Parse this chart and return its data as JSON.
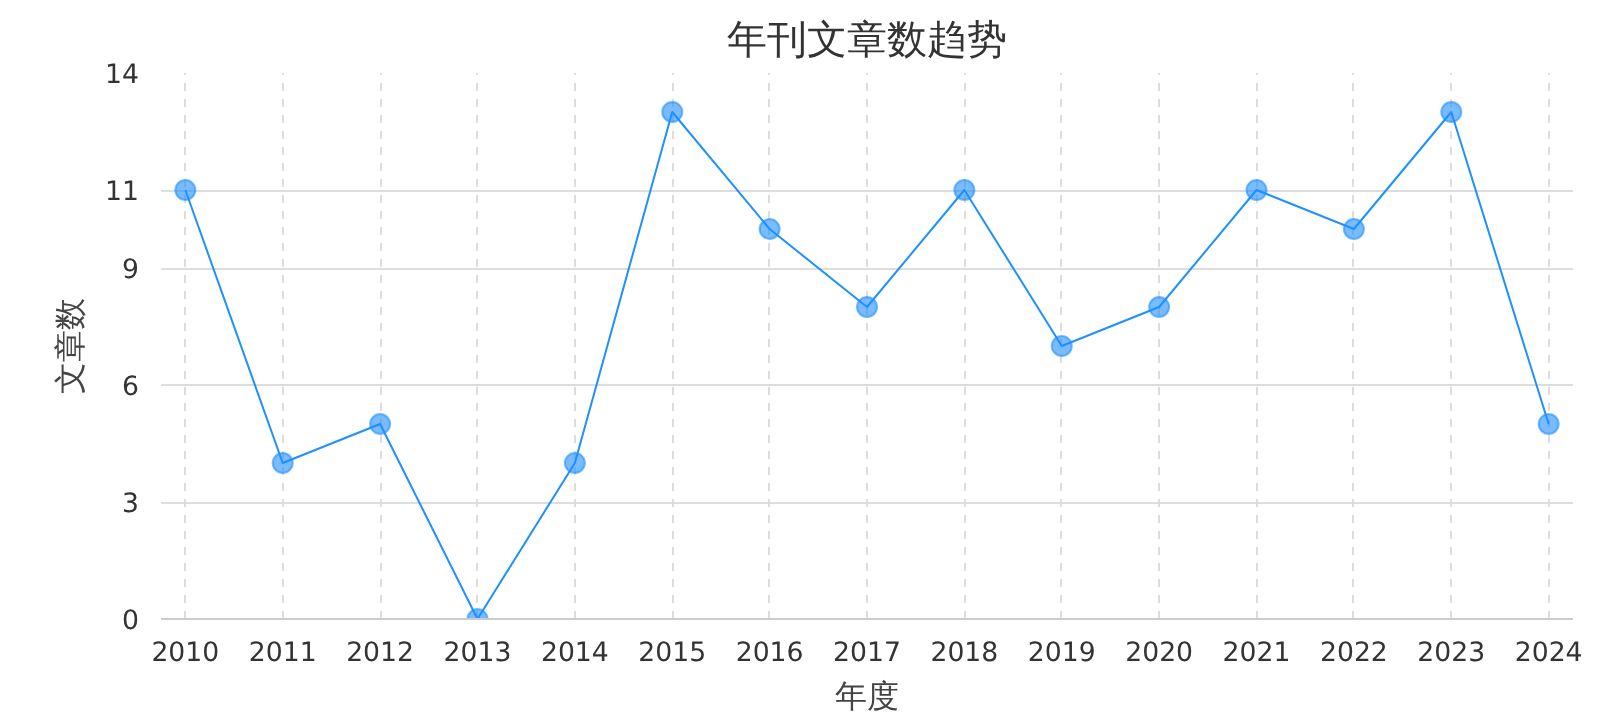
{
  "chart_data": {
    "type": "line",
    "title": "年刊文章数趋势",
    "xlabel": "年度",
    "ylabel": "文章数",
    "categories": [
      "2010",
      "2011",
      "2012",
      "2013",
      "2014",
      "2015",
      "2016",
      "2017",
      "2018",
      "2019",
      "2020",
      "2021",
      "2022",
      "2023",
      "2024"
    ],
    "series": [
      {
        "color": "#1e90ff",
        "values": [
          11,
          4,
          5,
          0,
          4,
          13,
          10,
          8,
          11,
          7,
          8,
          11,
          10,
          13,
          5
        ]
      }
    ],
    "ylim": [
      0,
      14
    ],
    "yticks": [
      0,
      3,
      6,
      9,
      11,
      14
    ],
    "grid": true,
    "marker": "circle",
    "line_style": "solid"
  }
}
